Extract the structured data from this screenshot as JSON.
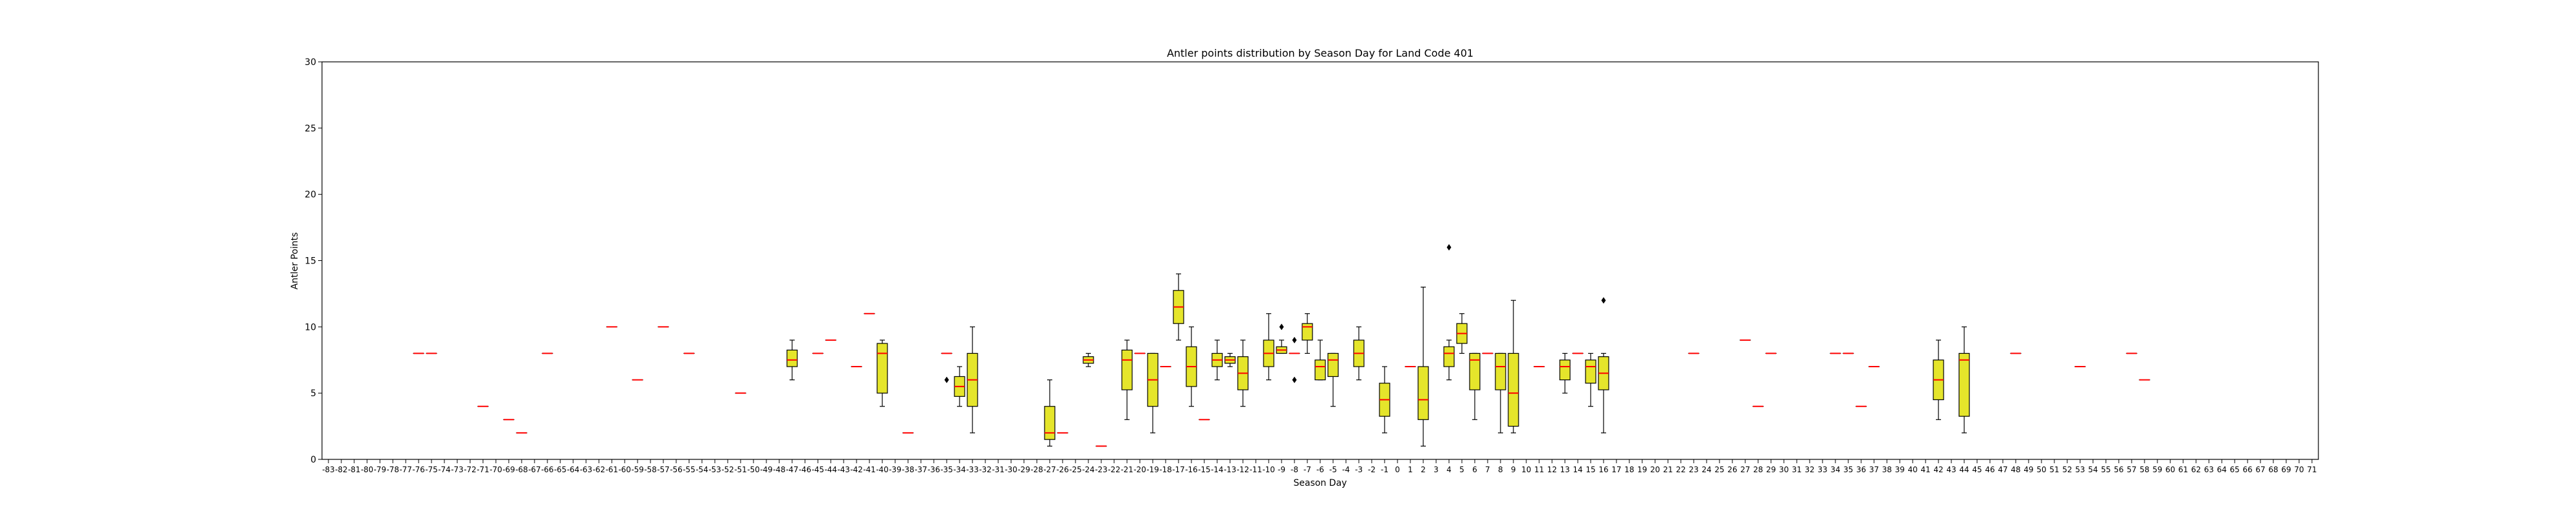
{
  "chart_data": {
    "type": "box",
    "title": "Antler points distribution by Season Day for Land Code 401",
    "xlabel": "Season Day",
    "ylabel": "Antler Points",
    "ylim": [
      0,
      30
    ],
    "yticks": [
      0,
      5,
      10,
      15,
      20,
      25,
      30
    ],
    "grid": false,
    "box_color": "#e5e52b",
    "median_color": "#ff0000",
    "x_range": [
      -83,
      71
    ],
    "boxes": [
      {
        "day": -76,
        "min": 8,
        "q1": 8,
        "median": 8,
        "q3": 8,
        "max": 8,
        "fliers": []
      },
      {
        "day": -75,
        "min": 8,
        "q1": 8,
        "median": 8,
        "q3": 8,
        "max": 8,
        "fliers": []
      },
      {
        "day": -71,
        "min": 4,
        "q1": 4,
        "median": 4,
        "q3": 4,
        "max": 4,
        "fliers": []
      },
      {
        "day": -69,
        "min": 3,
        "q1": 3,
        "median": 3,
        "q3": 3,
        "max": 3,
        "fliers": []
      },
      {
        "day": -68,
        "min": 2,
        "q1": 2,
        "median": 2,
        "q3": 2,
        "max": 2,
        "fliers": []
      },
      {
        "day": -66,
        "min": 8,
        "q1": 8,
        "median": 8,
        "q3": 8,
        "max": 8,
        "fliers": []
      },
      {
        "day": -61,
        "min": 10,
        "q1": 10,
        "median": 10,
        "q3": 10,
        "max": 10,
        "fliers": []
      },
      {
        "day": -59,
        "min": 6,
        "q1": 6,
        "median": 6,
        "q3": 6,
        "max": 6,
        "fliers": []
      },
      {
        "day": -57,
        "min": 10,
        "q1": 10,
        "median": 10,
        "q3": 10,
        "max": 10,
        "fliers": []
      },
      {
        "day": -55,
        "min": 8,
        "q1": 8,
        "median": 8,
        "q3": 8,
        "max": 8,
        "fliers": []
      },
      {
        "day": -51,
        "min": 5,
        "q1": 5,
        "median": 5,
        "q3": 5,
        "max": 5,
        "fliers": []
      },
      {
        "day": -47,
        "min": 6,
        "q1": 7,
        "median": 7.5,
        "q3": 8.25,
        "max": 9,
        "fliers": []
      },
      {
        "day": -45,
        "min": 8,
        "q1": 8,
        "median": 8,
        "q3": 8,
        "max": 8,
        "fliers": []
      },
      {
        "day": -44,
        "min": 9,
        "q1": 9,
        "median": 9,
        "q3": 9,
        "max": 9,
        "fliers": []
      },
      {
        "day": -42,
        "min": 7,
        "q1": 7,
        "median": 7,
        "q3": 7,
        "max": 7,
        "fliers": []
      },
      {
        "day": -41,
        "min": 11,
        "q1": 11,
        "median": 11,
        "q3": 11,
        "max": 11,
        "fliers": []
      },
      {
        "day": -40,
        "min": 4,
        "q1": 5,
        "median": 8,
        "q3": 8.75,
        "max": 9,
        "fliers": []
      },
      {
        "day": -38,
        "min": 2,
        "q1": 2,
        "median": 2,
        "q3": 2,
        "max": 2,
        "fliers": []
      },
      {
        "day": -35,
        "min": 8,
        "q1": 8,
        "median": 8,
        "q3": 8,
        "max": 8,
        "fliers": [
          6
        ]
      },
      {
        "day": -34,
        "min": 4,
        "q1": 4.75,
        "median": 5.5,
        "q3": 6.25,
        "max": 7,
        "fliers": []
      },
      {
        "day": -33,
        "min": 2,
        "q1": 4,
        "median": 6,
        "q3": 8,
        "max": 10,
        "fliers": []
      },
      {
        "day": -27,
        "min": 1,
        "q1": 1.5,
        "median": 2,
        "q3": 4,
        "max": 6,
        "fliers": []
      },
      {
        "day": -26,
        "min": 2,
        "q1": 2,
        "median": 2,
        "q3": 2,
        "max": 2,
        "fliers": []
      },
      {
        "day": -24,
        "min": 7,
        "q1": 7.25,
        "median": 7.5,
        "q3": 7.75,
        "max": 8,
        "fliers": []
      },
      {
        "day": -23,
        "min": 1,
        "q1": 1,
        "median": 1,
        "q3": 1,
        "max": 1,
        "fliers": []
      },
      {
        "day": -21,
        "min": 3,
        "q1": 5.25,
        "median": 7.5,
        "q3": 8.25,
        "max": 9,
        "fliers": []
      },
      {
        "day": -20,
        "min": 8,
        "q1": 8,
        "median": 8,
        "q3": 8,
        "max": 8,
        "fliers": []
      },
      {
        "day": -19,
        "min": 2,
        "q1": 4,
        "median": 6,
        "q3": 8,
        "max": 8,
        "fliers": []
      },
      {
        "day": -18,
        "min": 7,
        "q1": 7,
        "median": 7,
        "q3": 7,
        "max": 7,
        "fliers": []
      },
      {
        "day": -17,
        "min": 9,
        "q1": 10.25,
        "median": 11.5,
        "q3": 12.75,
        "max": 14,
        "fliers": []
      },
      {
        "day": -16,
        "min": 4,
        "q1": 5.5,
        "median": 7,
        "q3": 8.5,
        "max": 10,
        "fliers": []
      },
      {
        "day": -15,
        "min": 3,
        "q1": 3,
        "median": 3,
        "q3": 3,
        "max": 3,
        "fliers": []
      },
      {
        "day": -14,
        "min": 6,
        "q1": 7,
        "median": 7.5,
        "q3": 8,
        "max": 9,
        "fliers": []
      },
      {
        "day": -13,
        "min": 7,
        "q1": 7.25,
        "median": 7.5,
        "q3": 7.75,
        "max": 8,
        "fliers": []
      },
      {
        "day": -12,
        "min": 4,
        "q1": 5.25,
        "median": 6.5,
        "q3": 7.75,
        "max": 9,
        "fliers": []
      },
      {
        "day": -10,
        "min": 6,
        "q1": 7,
        "median": 8,
        "q3": 9,
        "max": 11,
        "fliers": []
      },
      {
        "day": -9,
        "min": 8,
        "q1": 8,
        "median": 8.25,
        "q3": 8.5,
        "max": 9,
        "fliers": [
          10
        ]
      },
      {
        "day": -8,
        "min": 8,
        "q1": 8,
        "median": 8,
        "q3": 8,
        "max": 8,
        "fliers": [
          6,
          9
        ]
      },
      {
        "day": -7,
        "min": 8,
        "q1": 9,
        "median": 10,
        "q3": 10.25,
        "max": 11,
        "fliers": []
      },
      {
        "day": -6,
        "min": 6,
        "q1": 6,
        "median": 7,
        "q3": 7.5,
        "max": 9,
        "fliers": []
      },
      {
        "day": -5,
        "min": 4,
        "q1": 6.25,
        "median": 7.5,
        "q3": 8,
        "max": 8,
        "fliers": []
      },
      {
        "day": -3,
        "min": 6,
        "q1": 7,
        "median": 8,
        "q3": 9,
        "max": 10,
        "fliers": []
      },
      {
        "day": -1,
        "min": 2,
        "q1": 3.25,
        "median": 4.5,
        "q3": 5.75,
        "max": 7,
        "fliers": []
      },
      {
        "day": 1,
        "min": 7,
        "q1": 7,
        "median": 7,
        "q3": 7,
        "max": 7,
        "fliers": []
      },
      {
        "day": 2,
        "min": 1,
        "q1": 3,
        "median": 4.5,
        "q3": 7,
        "max": 13,
        "fliers": []
      },
      {
        "day": 4,
        "min": 6,
        "q1": 7,
        "median": 8,
        "q3": 8.5,
        "max": 9,
        "fliers": [
          16
        ]
      },
      {
        "day": 5,
        "min": 8,
        "q1": 8.75,
        "median": 9.5,
        "q3": 10.25,
        "max": 11,
        "fliers": []
      },
      {
        "day": 6,
        "min": 3,
        "q1": 5.25,
        "median": 7.5,
        "q3": 8,
        "max": 8,
        "fliers": []
      },
      {
        "day": 7,
        "min": 8,
        "q1": 8,
        "median": 8,
        "q3": 8,
        "max": 8,
        "fliers": []
      },
      {
        "day": 8,
        "min": 2,
        "q1": 5.25,
        "median": 7,
        "q3": 8,
        "max": 8,
        "fliers": []
      },
      {
        "day": 9,
        "min": 2,
        "q1": 2.5,
        "median": 5,
        "q3": 8,
        "max": 12,
        "fliers": []
      },
      {
        "day": 11,
        "min": 7,
        "q1": 7,
        "median": 7,
        "q3": 7,
        "max": 7,
        "fliers": []
      },
      {
        "day": 13,
        "min": 5,
        "q1": 6,
        "median": 7,
        "q3": 7.5,
        "max": 8,
        "fliers": []
      },
      {
        "day": 14,
        "min": 8,
        "q1": 8,
        "median": 8,
        "q3": 8,
        "max": 8,
        "fliers": []
      },
      {
        "day": 15,
        "min": 4,
        "q1": 5.75,
        "median": 7,
        "q3": 7.5,
        "max": 8,
        "fliers": []
      },
      {
        "day": 16,
        "min": 2,
        "q1": 5.25,
        "median": 6.5,
        "q3": 7.75,
        "max": 8,
        "fliers": [
          12
        ]
      },
      {
        "day": 23,
        "min": 8,
        "q1": 8,
        "median": 8,
        "q3": 8,
        "max": 8,
        "fliers": []
      },
      {
        "day": 27,
        "min": 9,
        "q1": 9,
        "median": 9,
        "q3": 9,
        "max": 9,
        "fliers": []
      },
      {
        "day": 28,
        "min": 4,
        "q1": 4,
        "median": 4,
        "q3": 4,
        "max": 4,
        "fliers": []
      },
      {
        "day": 29,
        "min": 8,
        "q1": 8,
        "median": 8,
        "q3": 8,
        "max": 8,
        "fliers": []
      },
      {
        "day": 34,
        "min": 8,
        "q1": 8,
        "median": 8,
        "q3": 8,
        "max": 8,
        "fliers": []
      },
      {
        "day": 35,
        "min": 8,
        "q1": 8,
        "median": 8,
        "q3": 8,
        "max": 8,
        "fliers": []
      },
      {
        "day": 36,
        "min": 4,
        "q1": 4,
        "median": 4,
        "q3": 4,
        "max": 4,
        "fliers": []
      },
      {
        "day": 37,
        "min": 7,
        "q1": 7,
        "median": 7,
        "q3": 7,
        "max": 7,
        "fliers": []
      },
      {
        "day": 42,
        "min": 3,
        "q1": 4.5,
        "median": 6,
        "q3": 7.5,
        "max": 9,
        "fliers": []
      },
      {
        "day": 44,
        "min": 2,
        "q1": 3.25,
        "median": 7.5,
        "q3": 8,
        "max": 10,
        "fliers": []
      },
      {
        "day": 48,
        "min": 8,
        "q1": 8,
        "median": 8,
        "q3": 8,
        "max": 8,
        "fliers": []
      },
      {
        "day": 53,
        "min": 7,
        "q1": 7,
        "median": 7,
        "q3": 7,
        "max": 7,
        "fliers": []
      },
      {
        "day": 57,
        "min": 8,
        "q1": 8,
        "median": 8,
        "q3": 8,
        "max": 8,
        "fliers": []
      },
      {
        "day": 58,
        "min": 6,
        "q1": 6,
        "median": 6,
        "q3": 6,
        "max": 6,
        "fliers": []
      }
    ]
  }
}
